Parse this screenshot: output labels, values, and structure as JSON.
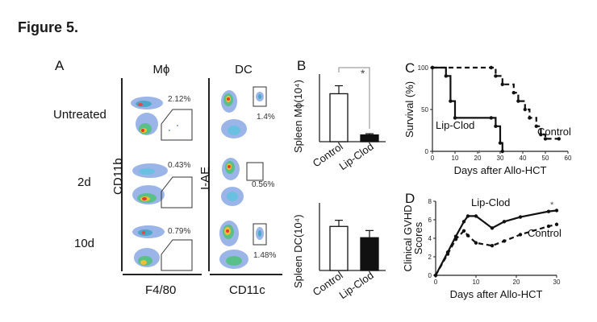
{
  "figure_title": "Figure 5.",
  "panel_a": {
    "label": "A",
    "columns": [
      "Mϕ",
      "DC"
    ],
    "rows": [
      "Untreated",
      "2d",
      "10d"
    ],
    "mphi_percents": [
      "2.12%",
      "0.43%",
      "0.79%"
    ],
    "dc_percents": [
      "1.4%",
      "0.56%",
      "1.48%"
    ],
    "mphi_xlabel": "F4/80",
    "mphi_ylabel": "CD11b",
    "dc_xlabel": "CD11c",
    "dc_ylabel": "I-AE"
  },
  "chart_data": [
    {
      "panel": "B",
      "type": "bar",
      "categories": [
        "Control",
        "Lip-Clod"
      ],
      "values": [
        78,
        11
      ],
      "errors": [
        13,
        2
      ],
      "colors": [
        "#ffffff",
        "#111111"
      ],
      "ylabel": "Spleen Mϕ(10⁴)",
      "ylim": [
        0,
        110
      ],
      "significance": "*"
    },
    {
      "panel": "B",
      "type": "bar",
      "categories": [
        "Control",
        "Lip-Clod"
      ],
      "values": [
        215,
        160
      ],
      "errors": [
        30,
        35
      ],
      "colors": [
        "#ffffff",
        "#111111"
      ],
      "ylabel": "Spleen DC(10⁴)",
      "ylim": [
        0,
        330
      ]
    },
    {
      "panel": "C",
      "type": "line",
      "step": true,
      "xlabel": "Days after Allo-HCT",
      "ylabel": "Survival (%)",
      "xlim": [
        0,
        60
      ],
      "ylim": [
        0,
        100
      ],
      "xticks": [
        0,
        10,
        20,
        30,
        40,
        50,
        60
      ],
      "yticks": [
        0,
        50,
        100
      ],
      "series": [
        {
          "name": "Lip-Clod",
          "style": "solid",
          "x": [
            0,
            6,
            8,
            10,
            26,
            28,
            30,
            31
          ],
          "y": [
            100,
            90,
            60,
            40,
            40,
            30,
            10,
            0
          ]
        },
        {
          "name": "Control",
          "style": "dashed",
          "x": [
            0,
            26,
            28,
            31,
            36,
            38,
            41,
            43,
            46,
            48,
            50,
            56
          ],
          "y": [
            100,
            100,
            90,
            80,
            70,
            60,
            50,
            40,
            30,
            20,
            15,
            15
          ]
        }
      ],
      "significance": "*"
    },
    {
      "panel": "D",
      "type": "line",
      "xlabel": "Days after Allo-HCT",
      "ylabel": "Clinical GVHD Scores",
      "xlim": [
        0,
        30
      ],
      "ylim": [
        0,
        8
      ],
      "xticks": [
        0,
        10,
        20,
        30
      ],
      "yticks": [
        0,
        2,
        4,
        6,
        8
      ],
      "series": [
        {
          "name": "Lip-Clod",
          "style": "solid",
          "x": [
            0,
            3,
            5,
            7,
            8,
            10,
            14,
            17,
            21,
            28,
            30
          ],
          "y": [
            0,
            2.5,
            4.2,
            5.8,
            6.4,
            6.4,
            5.1,
            5.8,
            6.3,
            6.9,
            7.0
          ]
        },
        {
          "name": "Control",
          "style": "dashed",
          "x": [
            0,
            3,
            5,
            7,
            8,
            10,
            14,
            17,
            21,
            28,
            30
          ],
          "y": [
            0,
            2.3,
            3.9,
            4.8,
            4.3,
            3.5,
            3.2,
            3.7,
            4.4,
            5.3,
            5.5
          ]
        }
      ],
      "significance": "*"
    }
  ]
}
